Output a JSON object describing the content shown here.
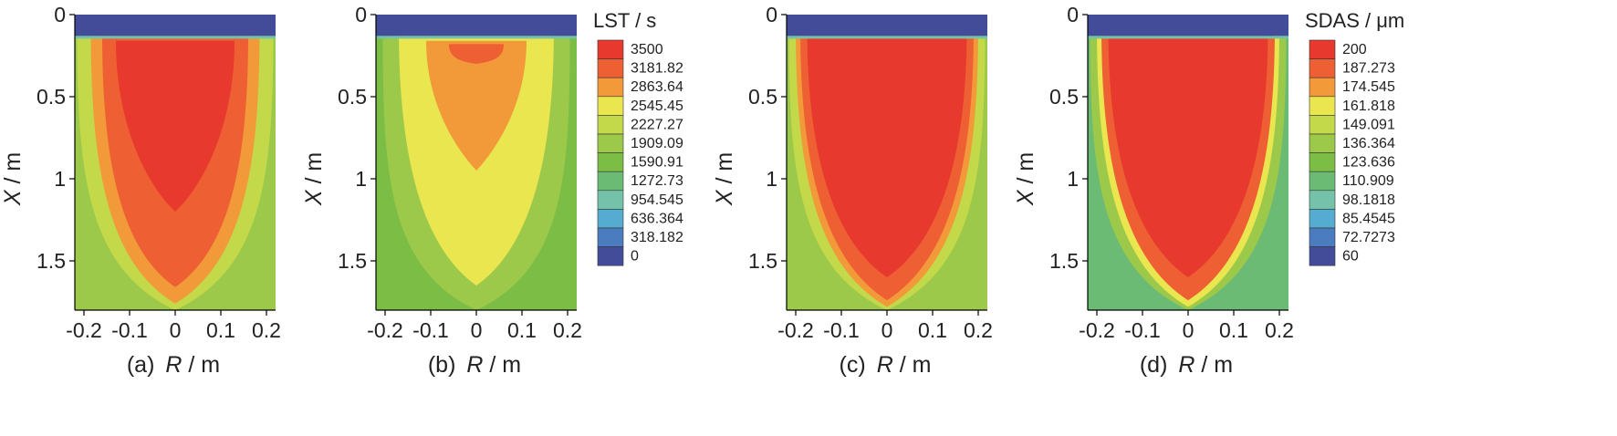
{
  "panels": [
    {
      "caption_prefix": "(a)",
      "xlabel_symbol": "R",
      "xlabel_unit": " / m",
      "ylabel_symbol": "X",
      "ylabel_unit": " / m",
      "xticks": [
        "-0.2",
        "-0.1",
        "0",
        "0.1",
        "0.2"
      ],
      "yticks": [
        "0",
        "0.5",
        "1",
        "1.5"
      ]
    },
    {
      "caption_prefix": "(b)",
      "xlabel_symbol": "R",
      "xlabel_unit": " / m",
      "ylabel_symbol": "X",
      "ylabel_unit": " / m",
      "xticks": [
        "-0.2",
        "-0.1",
        "0",
        "0.1",
        "0.2"
      ],
      "yticks": [
        "0",
        "0.5",
        "1",
        "1.5"
      ]
    },
    {
      "caption_prefix": "(c)",
      "xlabel_symbol": "R",
      "xlabel_unit": " / m",
      "ylabel_symbol": "X",
      "ylabel_unit": " / m",
      "xticks": [
        "-0.2",
        "-0.1",
        "0",
        "0.1",
        "0.2"
      ],
      "yticks": [
        "0",
        "0.5",
        "1",
        "1.5"
      ]
    },
    {
      "caption_prefix": "(d)",
      "xlabel_symbol": "R",
      "xlabel_unit": " / m",
      "ylabel_symbol": "X",
      "ylabel_unit": " / m",
      "xticks": [
        "-0.2",
        "-0.1",
        "0",
        "0.1",
        "0.2"
      ],
      "yticks": [
        "0",
        "0.5",
        "1",
        "1.5"
      ]
    }
  ],
  "legends": [
    {
      "title": "LST / s",
      "levels": [
        "3500",
        "3181.82",
        "2863.64",
        "2545.45",
        "2227.27",
        "1909.09",
        "1590.91",
        "1272.73",
        "954.545",
        "636.364",
        "318.182",
        "0"
      ]
    },
    {
      "title": "SDAS / μm",
      "levels": [
        "200",
        "187.273",
        "174.545",
        "161.818",
        "149.091",
        "136.364",
        "123.636",
        "110.909",
        "98.1818",
        "85.4545",
        "72.7273",
        "60"
      ]
    }
  ],
  "colormap": [
    "#e8392e",
    "#ee5f33",
    "#f29a3a",
    "#e9e650",
    "#c3d94a",
    "#9dc94a",
    "#7cbd45",
    "#6bbb74",
    "#74c2a9",
    "#55acd0",
    "#4a7cbf",
    "#424c98"
  ],
  "chart_data": [
    {
      "type": "heatmap",
      "field": "LST",
      "unit": "s",
      "xlabel": "R / m",
      "ylabel": "X / m",
      "xlim": [
        -0.22,
        0.22
      ],
      "ylim": [
        1.8,
        0
      ],
      "color_levels": [
        0,
        318.182,
        636.364,
        954.545,
        1272.73,
        1590.91,
        1909.09,
        2227.27,
        2545.45,
        2863.64,
        3181.82,
        3500
      ],
      "region_values": {
        "chill_layer_top": 0,
        "edge": 1909.09,
        "outer": 2227.27,
        "mid": 2863.64,
        "inner": 3181.82,
        "core": 3500
      },
      "core_depth_m": 1.2
    },
    {
      "type": "heatmap",
      "field": "LST",
      "unit": "s",
      "xlabel": "R / m",
      "ylabel": "X / m",
      "xlim": [
        -0.22,
        0.22
      ],
      "ylim": [
        1.8,
        0
      ],
      "color_levels": [
        0,
        318.182,
        636.364,
        954.545,
        1272.73,
        1590.91,
        1909.09,
        2227.27,
        2545.45,
        2863.64,
        3181.82,
        3500
      ],
      "region_values": {
        "chill_layer_top": 0,
        "edge": 1590.91,
        "outer": 1909.09,
        "mid": 2545.45,
        "inner": 2863.64,
        "core": 3181.82
      },
      "core_depth_m": 0.3
    },
    {
      "type": "heatmap",
      "field": "SDAS",
      "unit": "um",
      "xlabel": "R / m",
      "ylabel": "X / m",
      "xlim": [
        -0.22,
        0.22
      ],
      "ylim": [
        1.8,
        0
      ],
      "color_levels": [
        60,
        72.7273,
        85.4545,
        98.1818,
        110.909,
        123.636,
        136.364,
        149.091,
        161.818,
        174.545,
        187.273,
        200
      ],
      "region_values": {
        "chill_layer_top": 60,
        "edge": 136.364,
        "outer": 149.091,
        "mid": 174.545,
        "inner": 187.273,
        "core": 200
      },
      "core_depth_m": 1.6
    },
    {
      "type": "heatmap",
      "field": "SDAS",
      "unit": "um",
      "xlabel": "R / m",
      "ylabel": "X / m",
      "xlim": [
        -0.22,
        0.22
      ],
      "ylim": [
        1.8,
        0
      ],
      "color_levels": [
        60,
        72.7273,
        85.4545,
        98.1818,
        110.909,
        123.636,
        136.364,
        149.091,
        161.818,
        174.545,
        187.273,
        200
      ],
      "region_values": {
        "chill_layer_top": 60,
        "edge": 110.909,
        "outer": 136.364,
        "mid": 161.818,
        "inner": 187.273,
        "core": 200
      },
      "core_depth_m": 1.6
    }
  ]
}
